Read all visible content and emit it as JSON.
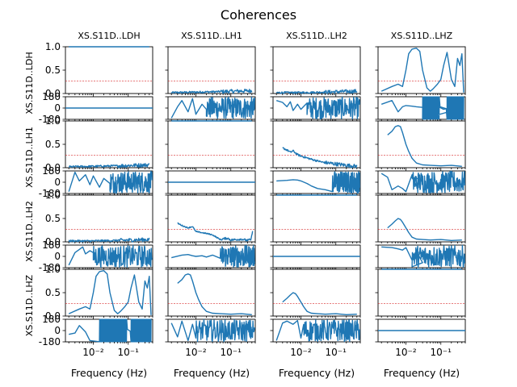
{
  "chart_data": {
    "type": "line",
    "title": "Coherences",
    "channels": [
      "XS.S11D..LDH",
      "XS.S11D..LH1",
      "XS.S11D..LH2",
      "XS.S11D..LHZ"
    ],
    "row_labels": [
      "XS.S11D..LDH",
      "XS.S11D..LH1",
      "XS.S11D..LH2",
      "XS.S11D..LHZ"
    ],
    "xlabel": "Frequency (Hz)",
    "x_scale": "log",
    "xlim": [
      0.0016,
      0.5
    ],
    "x_tick_labels": [
      "10⁻²",
      "10⁻¹"
    ],
    "x_ticks": [
      0.01,
      0.1
    ],
    "coherence_ylim": [
      0,
      1
    ],
    "coherence_y_ticks": [
      "0.0",
      "0.5",
      "1.0"
    ],
    "phase_ylim": [
      -180,
      180
    ],
    "phase_y_ticks": [
      "-180",
      "0",
      "180"
    ],
    "threshold": 0.27,
    "threshold_color": "#d62728",
    "line_color": "#1f77b4",
    "coherence": [
      [
        {
          "f": [
            0.002,
            0.005,
            0.01,
            0.02,
            0.05,
            0.1,
            0.2,
            0.4
          ],
          "c": [
            1,
            1,
            1,
            1,
            1,
            1,
            1,
            1
          ]
        },
        {
          "f": [
            0.002,
            0.01,
            0.05,
            0.4
          ],
          "c": [
            0.02,
            0.03,
            0.04,
            0.06
          ],
          "noise": 0.05
        },
        {
          "f": [
            0.002,
            0.01,
            0.05,
            0.4
          ],
          "c": [
            0.02,
            0.02,
            0.03,
            0.05
          ],
          "noise": 0.05
        },
        {
          "f": [
            0.002,
            0.004,
            0.006,
            0.008,
            0.01,
            0.012,
            0.015,
            0.02,
            0.025,
            0.03,
            0.04,
            0.05,
            0.06,
            0.08,
            0.1,
            0.12,
            0.15,
            0.2,
            0.25,
            0.3,
            0.35,
            0.4,
            0.45
          ],
          "c": [
            0.05,
            0.15,
            0.2,
            0.15,
            0.5,
            0.85,
            0.95,
            0.97,
            0.9,
            0.5,
            0.12,
            0.05,
            0.1,
            0.2,
            0.3,
            0.6,
            0.88,
            0.3,
            0.15,
            0.75,
            0.6,
            0.85,
            0.02
          ]
        }
      ],
      [
        {
          "f": [
            0.002,
            0.01,
            0.05,
            0.4
          ],
          "c": [
            0.02,
            0.03,
            0.04,
            0.06
          ],
          "noise": 0.05
        },
        {
          "f": [
            0.002,
            0.005,
            0.01,
            0.02,
            0.05,
            0.1,
            0.2,
            0.4
          ],
          "c": [
            1,
            1,
            1,
            1,
            1,
            1,
            1,
            1
          ]
        },
        {
          "f": [
            0.003,
            0.004,
            0.005,
            0.006,
            0.008,
            0.01,
            0.02,
            0.04,
            0.06,
            0.1,
            0.2,
            0.4
          ],
          "c": [
            0.42,
            0.38,
            0.33,
            0.36,
            0.28,
            0.25,
            0.18,
            0.12,
            0.1,
            0.08,
            0.05,
            0.03
          ],
          "noise": 0.05
        },
        {
          "f": [
            0.003,
            0.004,
            0.005,
            0.006,
            0.007,
            0.008,
            0.01,
            0.012,
            0.015,
            0.02,
            0.03,
            0.05,
            0.1,
            0.2,
            0.4
          ],
          "c": [
            0.7,
            0.78,
            0.88,
            0.9,
            0.88,
            0.75,
            0.5,
            0.35,
            0.2,
            0.1,
            0.06,
            0.05,
            0.04,
            0.05,
            0.03
          ]
        }
      ],
      [
        {
          "f": [
            0.002,
            0.01,
            0.05,
            0.4
          ],
          "c": [
            0.02,
            0.02,
            0.03,
            0.05
          ],
          "noise": 0.05
        },
        {
          "f": [
            0.003,
            0.004,
            0.006,
            0.008,
            0.01,
            0.02,
            0.03,
            0.05,
            0.08,
            0.1,
            0.2,
            0.3,
            0.38,
            0.42
          ],
          "c": [
            0.4,
            0.35,
            0.3,
            0.33,
            0.22,
            0.18,
            0.15,
            0.05,
            0.08,
            0.04,
            0.06,
            0.03,
            0.05,
            0.25
          ],
          "noise": 0.03
        },
        {
          "f": [
            0.002,
            0.005,
            0.01,
            0.02,
            0.05,
            0.1,
            0.2,
            0.4
          ],
          "c": [
            1,
            1,
            1,
            1,
            1,
            1,
            1,
            1
          ]
        },
        {
          "f": [
            0.003,
            0.004,
            0.005,
            0.006,
            0.007,
            0.008,
            0.01,
            0.012,
            0.015,
            0.02,
            0.03,
            0.05,
            0.1,
            0.2,
            0.4
          ],
          "c": [
            0.3,
            0.38,
            0.45,
            0.5,
            0.48,
            0.42,
            0.3,
            0.2,
            0.1,
            0.06,
            0.05,
            0.04,
            0.05,
            0.03,
            0.04
          ]
        }
      ],
      [
        {
          "f": [
            0.002,
            0.004,
            0.006,
            0.008,
            0.01,
            0.012,
            0.015,
            0.02,
            0.025,
            0.03,
            0.04,
            0.05,
            0.06,
            0.08,
            0.1,
            0.12,
            0.15,
            0.2,
            0.25,
            0.3,
            0.35,
            0.4,
            0.45
          ],
          "c": [
            0.05,
            0.15,
            0.2,
            0.15,
            0.5,
            0.85,
            0.95,
            0.97,
            0.9,
            0.5,
            0.12,
            0.05,
            0.1,
            0.2,
            0.3,
            0.6,
            0.88,
            0.3,
            0.15,
            0.75,
            0.6,
            0.85,
            0.02
          ]
        },
        {
          "f": [
            0.003,
            0.004,
            0.005,
            0.006,
            0.007,
            0.008,
            0.01,
            0.012,
            0.015,
            0.02,
            0.03,
            0.05,
            0.1,
            0.2,
            0.4
          ],
          "c": [
            0.7,
            0.78,
            0.88,
            0.9,
            0.88,
            0.75,
            0.5,
            0.35,
            0.2,
            0.1,
            0.06,
            0.05,
            0.04,
            0.05,
            0.03
          ]
        },
        {
          "f": [
            0.003,
            0.004,
            0.005,
            0.006,
            0.007,
            0.008,
            0.01,
            0.012,
            0.015,
            0.02,
            0.03,
            0.05,
            0.1,
            0.2,
            0.4
          ],
          "c": [
            0.3,
            0.38,
            0.45,
            0.5,
            0.48,
            0.42,
            0.3,
            0.2,
            0.1,
            0.06,
            0.05,
            0.04,
            0.05,
            0.03,
            0.04
          ]
        },
        {
          "f": [
            0.002,
            0.005,
            0.01,
            0.02,
            0.05,
            0.1,
            0.2,
            0.4
          ],
          "c": [
            1,
            1,
            1,
            1,
            1,
            1,
            1,
            1
          ]
        }
      ]
    ],
    "phase": [
      [
        {
          "f": [
            0.0016,
            0.5
          ],
          "p": [
            0,
            0
          ]
        },
        {
          "f": [
            0.002,
            0.003,
            0.004,
            0.006,
            0.008,
            0.01,
            0.015,
            0.02
          ],
          "p": [
            -160,
            20,
            120,
            -60,
            150,
            -100,
            60,
            -20
          ],
          "noise_from": 0.02
        },
        {
          "f": [
            0.002,
            0.003,
            0.004,
            0.005,
            0.006,
            0.008,
            0.01,
            0.015
          ],
          "p": [
            120,
            90,
            20,
            100,
            -40,
            60,
            -20,
            80
          ],
          "noise_from": 0.015
        },
        {
          "f": [
            0.002,
            0.004,
            0.006,
            0.008,
            0.01,
            0.015,
            0.02,
            0.03,
            0.05,
            0.08,
            0.12,
            0.2,
            0.3,
            0.4
          ],
          "p": [
            60,
            120,
            -60,
            20,
            40,
            30,
            20,
            10,
            0,
            30,
            -20,
            10,
            20,
            0
          ],
          "block": [
            0.03,
            0.09
          ],
          "block2": [
            0.15,
            0.45
          ]
        }
      ],
      [
        {
          "f": [
            0.002,
            0.003,
            0.004,
            0.006,
            0.008,
            0.01,
            0.015,
            0.02,
            0.03
          ],
          "p": [
            -150,
            160,
            20,
            120,
            -40,
            100,
            -80,
            60,
            -20
          ],
          "noise_from": 0.03
        },
        {
          "f": [
            0.0016,
            0.5
          ],
          "p": [
            0,
            0
          ]
        },
        {
          "f": [
            0.002,
            0.004,
            0.006,
            0.008,
            0.01,
            0.015,
            0.02,
            0.03,
            0.05,
            0.08
          ],
          "p": [
            20,
            30,
            40,
            35,
            20,
            -20,
            -60,
            -100,
            -120,
            -150
          ],
          "noise_from": 0.08
        },
        {
          "f": [
            0.002,
            0.003,
            0.004,
            0.006,
            0.008,
            0.01,
            0.015,
            0.02,
            0.03
          ],
          "p": [
            140,
            80,
            -120,
            -60,
            -100,
            -150,
            120,
            -60,
            40
          ],
          "noise_from": 0.015
        }
      ],
      [
        {
          "f": [
            0.002,
            0.003,
            0.004,
            0.005,
            0.006,
            0.008,
            0.01
          ],
          "p": [
            -140,
            60,
            110,
            150,
            40,
            90,
            60
          ],
          "noise_from": 0.01
        },
        {
          "f": [
            0.002,
            0.004,
            0.006,
            0.008,
            0.01,
            0.015,
            0.02,
            0.03,
            0.05
          ],
          "p": [
            -20,
            20,
            30,
            10,
            0,
            10,
            -10,
            20,
            -30
          ],
          "noise_from": 0.05
        },
        {
          "f": [
            0.0016,
            0.5
          ],
          "p": [
            0,
            0
          ]
        },
        {
          "f": [
            0.002,
            0.004,
            0.006,
            0.008,
            0.01,
            0.015,
            0.02,
            0.03
          ],
          "p": [
            150,
            140,
            120,
            100,
            140,
            -60,
            80,
            -100
          ],
          "noise_from": 0.015
        }
      ],
      [
        {
          "f": [
            0.002,
            0.003,
            0.004,
            0.006,
            0.008
          ],
          "p": [
            -60,
            -40,
            80,
            -20,
            -160
          ],
          "block": [
            0.015,
            0.09
          ],
          "block2": [
            0.12,
            0.45
          ]
        },
        {
          "f": [
            0.002,
            0.003,
            0.004,
            0.006,
            0.008,
            0.01
          ],
          "p": [
            120,
            -100,
            150,
            -160,
            100,
            -120
          ],
          "noise_from": 0.01
        },
        {
          "f": [
            0.002,
            0.003,
            0.004,
            0.006,
            0.008,
            0.01
          ],
          "p": [
            -160,
            120,
            150,
            100,
            160,
            -120
          ],
          "noise_from": 0.012
        },
        {
          "f": [
            0.0016,
            0.5
          ],
          "p": [
            0,
            0
          ]
        }
      ]
    ]
  }
}
